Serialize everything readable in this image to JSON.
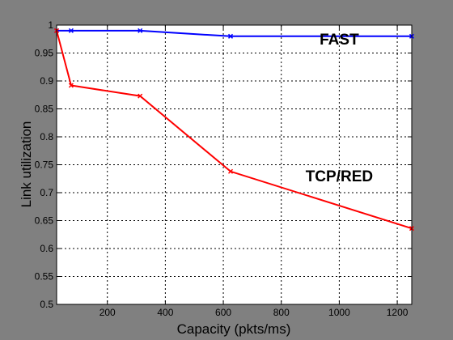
{
  "chart_data": {
    "type": "line",
    "title": "",
    "xlabel": "Capacity (pkts/ms)",
    "ylabel": "Link utilization",
    "xlim": [
      25,
      1250
    ],
    "ylim": [
      0.5,
      1.0
    ],
    "xticks": [
      200,
      400,
      600,
      800,
      1000,
      1200
    ],
    "yticks": [
      0.5,
      0.55,
      0.6,
      0.65,
      0.7,
      0.75,
      0.8,
      0.85,
      0.9,
      0.95,
      1
    ],
    "ytick_labels": [
      "0.5",
      "0.55",
      "0.6",
      "0.65",
      "0.7",
      "0.75",
      "0.8",
      "0.85",
      "0.9",
      "0.95",
      "1"
    ],
    "grid": true,
    "series": [
      {
        "name": "FAST",
        "color": "#0000ff",
        "marker": "x",
        "x": [
          25,
          75,
          313,
          625,
          1250
        ],
        "y": [
          0.99,
          0.99,
          0.99,
          0.98,
          0.98
        ]
      },
      {
        "name": "TCP/RED",
        "color": "#ff0000",
        "marker": "x",
        "x": [
          25,
          75,
          313,
          625,
          1250
        ],
        "y": [
          0.99,
          0.892,
          0.873,
          0.738,
          0.636
        ]
      }
    ],
    "annotations": [
      {
        "text": "FAST",
        "x": 1000,
        "y": 0.965
      },
      {
        "text": "TCP/RED",
        "x": 1000,
        "y": 0.72
      }
    ]
  }
}
